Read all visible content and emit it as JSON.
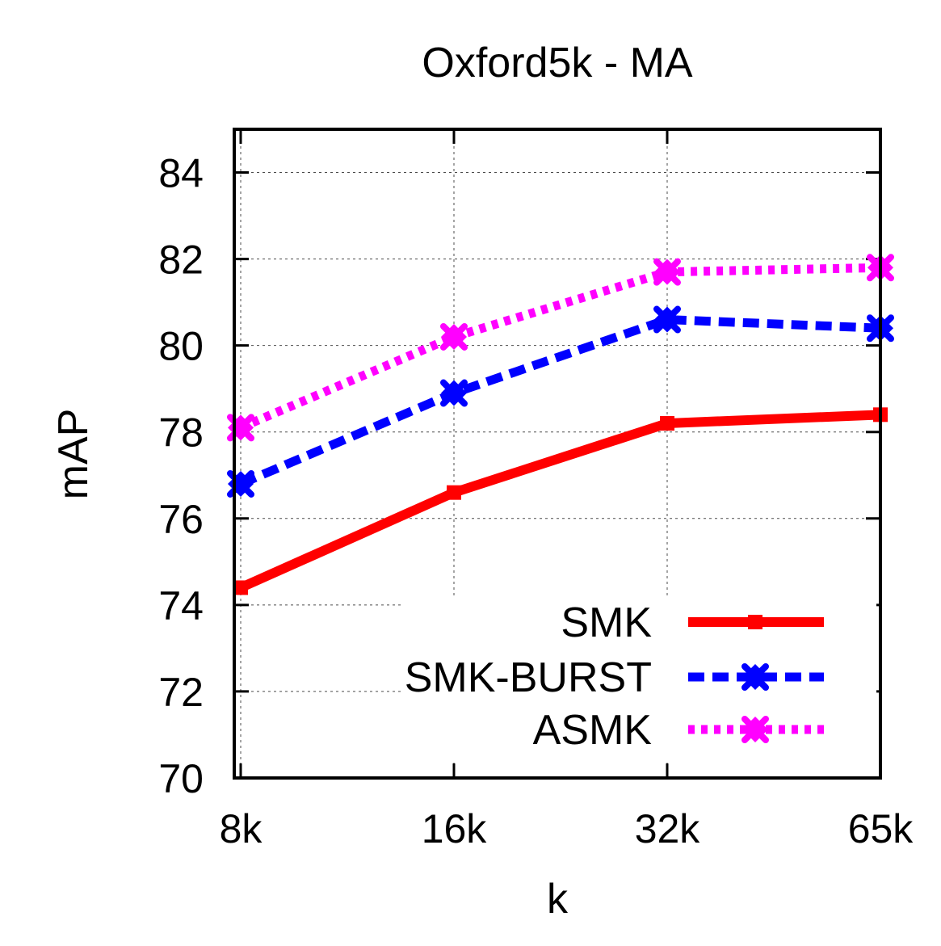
{
  "chart_data": {
    "type": "line",
    "title": "Oxford5k - MA",
    "xlabel": "k",
    "ylabel": "mAP",
    "categories": [
      "8k",
      "16k",
      "32k",
      "65k"
    ],
    "ylim": [
      70,
      85
    ],
    "yticks": [
      70,
      72,
      74,
      76,
      78,
      80,
      82,
      84
    ],
    "grid": true,
    "legend_position": "bottom-right",
    "series": [
      {
        "name": "SMK",
        "values": [
          74.4,
          76.6,
          78.2,
          78.4
        ],
        "color": "#ff0000",
        "line_style": "solid",
        "marker": "square"
      },
      {
        "name": "SMK-BURST",
        "values": [
          76.8,
          78.9,
          80.6,
          80.4
        ],
        "color": "#0000ff",
        "line_style": "dashed",
        "marker": "diamond-cross"
      },
      {
        "name": "ASMK",
        "values": [
          78.1,
          80.2,
          81.7,
          81.8
        ],
        "color": "#ff00ff",
        "line_style": "dotted",
        "marker": "diamond-cross"
      }
    ]
  }
}
